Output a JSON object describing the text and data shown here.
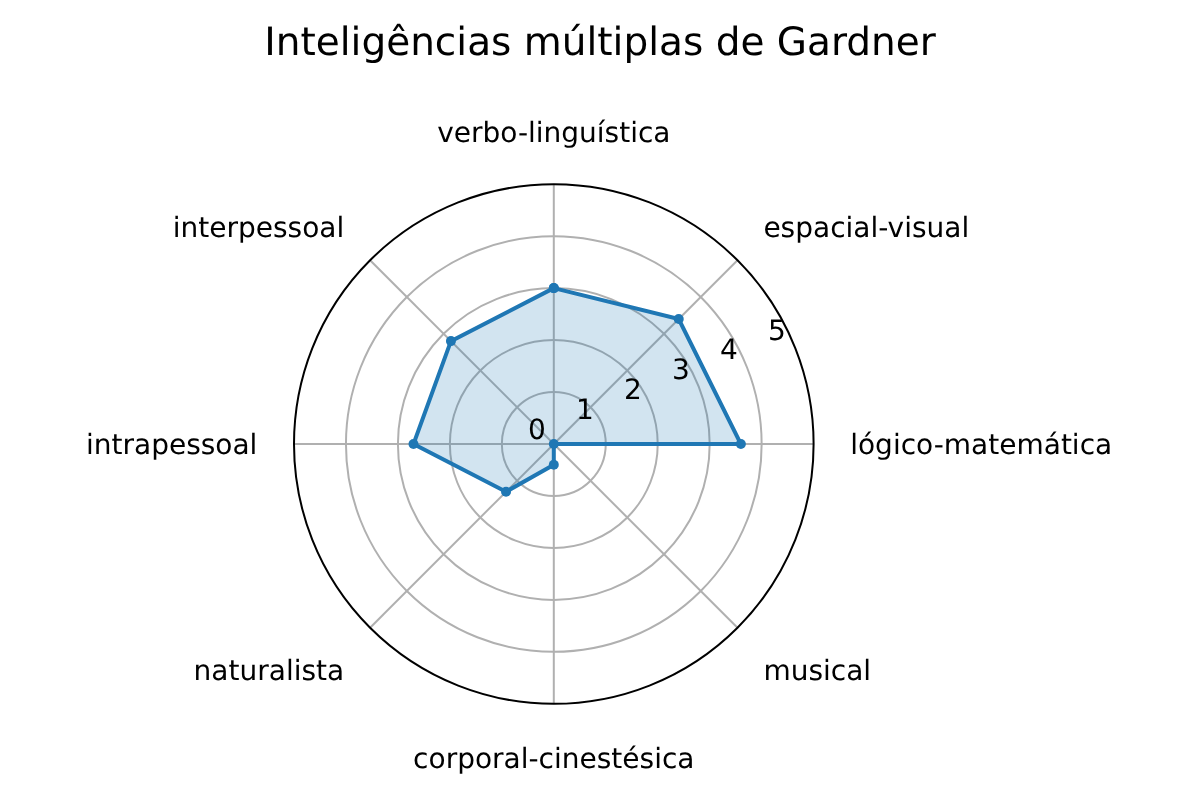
{
  "chart_data": {
    "type": "radar",
    "title": "Inteligências múltiplas de Gardner",
    "categories": [
      "verbo-linguística",
      "espacial-visual",
      "lógico-matemática",
      "musical",
      "corporal-cinestésica",
      "naturalista",
      "intrapessoal",
      "interpessoal"
    ],
    "series": [
      {
        "color": "#1f77b4",
        "values": [
          3,
          3.4,
          3.6,
          0,
          0.4,
          1.3,
          2.7,
          2.8
        ]
      }
    ],
    "ylim": [
      0,
      5
    ],
    "yticks": [
      0,
      1,
      2,
      3,
      4,
      5
    ],
    "grid": true,
    "marker": "circle",
    "line_style": "solid"
  }
}
